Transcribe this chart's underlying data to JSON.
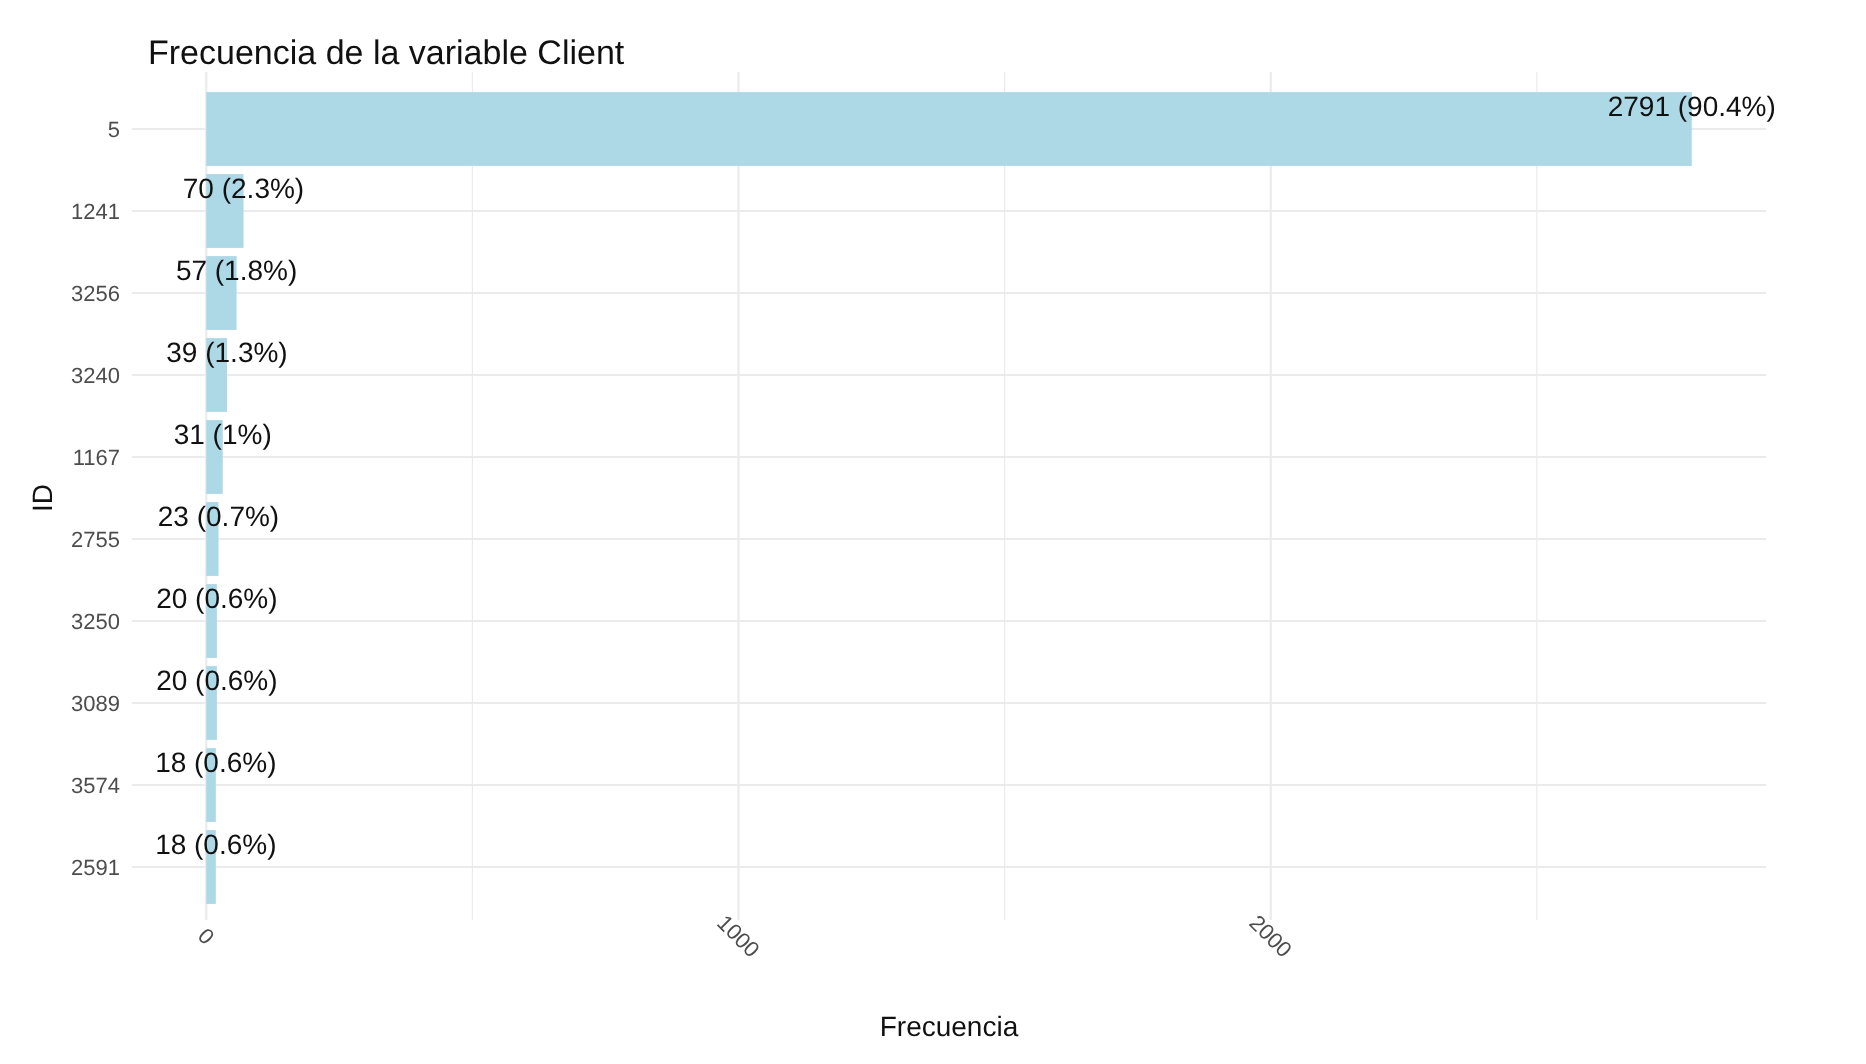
{
  "chart_data": {
    "type": "bar",
    "orientation": "horizontal",
    "title": "Frecuencia de la variable Client",
    "xlabel": "Frecuencia",
    "ylabel": "ID",
    "categories": [
      "5",
      "1241",
      "3256",
      "3240",
      "1167",
      "2755",
      "3250",
      "3089",
      "3574",
      "2591"
    ],
    "values": [
      2791,
      70,
      57,
      39,
      31,
      23,
      20,
      20,
      18,
      18
    ],
    "value_labels": [
      "2791 (90.4%)",
      "70 (2.3%)",
      "57 (1.8%)",
      "39 (1.3%)",
      "31 (1%)",
      "23 (0.7%)",
      "20 (0.6%)",
      "20 (0.6%)",
      "18 (0.6%)",
      "18 (0.6%)"
    ],
    "color": "#add8e6",
    "xlim": [
      -139.5,
      2930.5
    ],
    "xticks": [
      0,
      {
        "value": 500,
        "label": null
      },
      1000,
      {
        "value": 1500,
        "label": null
      },
      2000,
      {
        "value": 2500,
        "label": null
      }
    ],
    "grid": true
  }
}
